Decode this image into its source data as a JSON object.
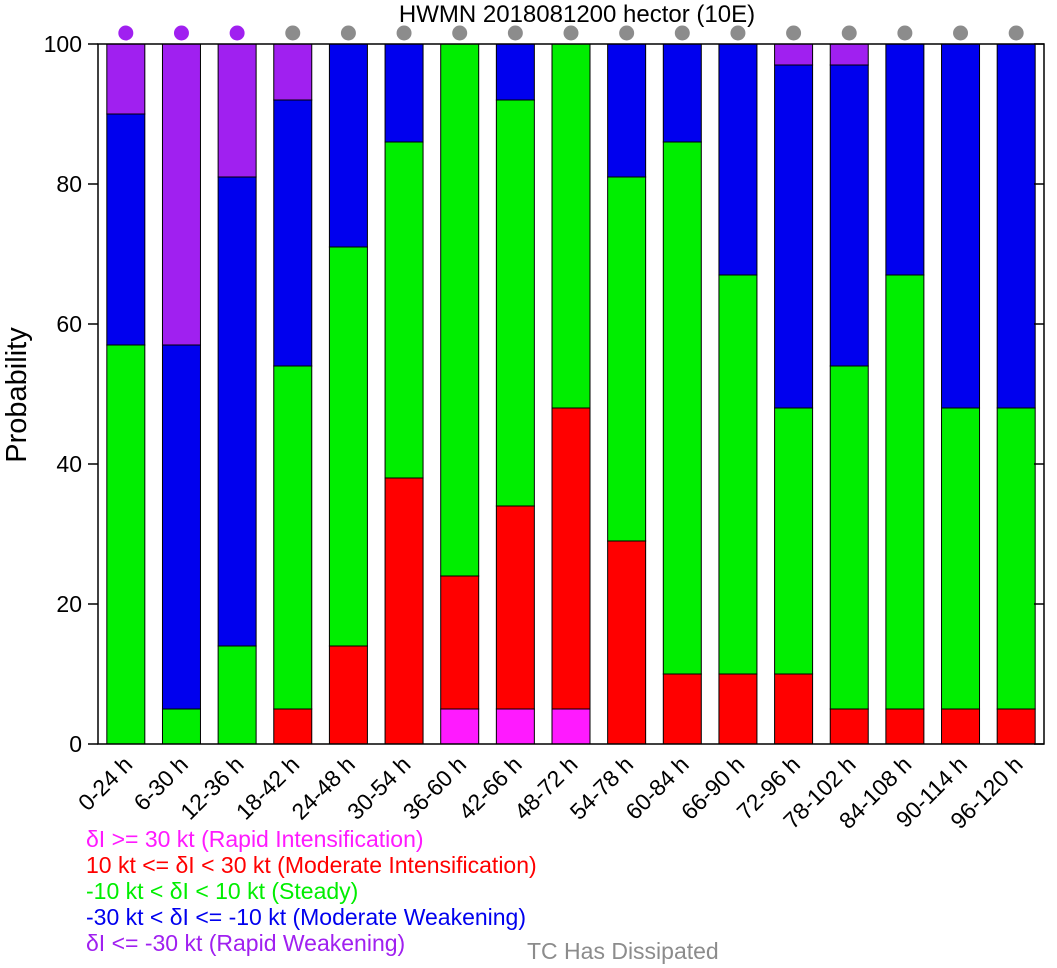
{
  "chart_data": {
    "type": "bar",
    "stacked": true,
    "title": "HWMN 2018081200 hector (10E)",
    "ylabel": "Probability",
    "ylim": [
      0,
      100
    ],
    "yticks": [
      0,
      20,
      40,
      60,
      80,
      100
    ],
    "categories": [
      "0-24 h",
      "6-30 h",
      "12-36 h",
      "18-42 h",
      "24-48 h",
      "30-54 h",
      "36-60 h",
      "42-66 h",
      "48-72 h",
      "54-78 h",
      "60-84 h",
      "66-90 h",
      "72-96 h",
      "78-102 h",
      "84-108 h",
      "90-114 h",
      "96-120 h"
    ],
    "series": [
      {
        "name": "δI >= 30 kt (Rapid Intensification)",
        "color": "#ff1aff",
        "values": [
          0,
          0,
          0,
          0,
          0,
          0,
          5,
          5,
          5,
          0,
          0,
          0,
          0,
          0,
          0,
          0,
          0
        ]
      },
      {
        "name": "10 kt <= δI < 30 kt (Moderate Intensification)",
        "color": "#ff0000",
        "values": [
          0,
          0,
          0,
          5,
          14,
          38,
          19,
          29,
          43,
          29,
          10,
          10,
          10,
          5,
          5,
          5,
          5
        ]
      },
      {
        "name": "-10 kt < δI < 10 kt (Steady)",
        "color": "#00ee00",
        "values": [
          57,
          5,
          14,
          49,
          57,
          48,
          76,
          58,
          52,
          52,
          76,
          57,
          38,
          49,
          62,
          43,
          43
        ]
      },
      {
        "name": "-30 kt < δI <= -10 kt (Moderate Weakening)",
        "color": "#0000ee",
        "values": [
          33,
          52,
          67,
          38,
          29,
          14,
          0,
          8,
          0,
          19,
          14,
          33,
          49,
          43,
          33,
          52,
          52
        ]
      },
      {
        "name": "δI <= -30 kt (Rapid Weakening)",
        "color": "#a020f0",
        "values": [
          10,
          43,
          19,
          8,
          0,
          0,
          0,
          0,
          0,
          0,
          0,
          0,
          3,
          3,
          0,
          0,
          0
        ]
      }
    ],
    "status_dots": [
      "#a020f0",
      "#a020f0",
      "#a020f0",
      "#8c8c8c",
      "#8c8c8c",
      "#8c8c8c",
      "#8c8c8c",
      "#8c8c8c",
      "#8c8c8c",
      "#8c8c8c",
      "#8c8c8c",
      "#8c8c8c",
      "#8c8c8c",
      "#8c8c8c",
      "#8c8c8c",
      "#8c8c8c",
      "#8c8c8c"
    ],
    "legend": [
      {
        "text": "δI >= 30 kt (Rapid Intensification)",
        "color": "#ff1aff"
      },
      {
        "text": "10 kt <= δI < 30 kt (Moderate Intensification)",
        "color": "#ff0000"
      },
      {
        "text": "-10 kt < δI < 10 kt (Steady)",
        "color": "#00ee00"
      },
      {
        "text": "-30 kt < δI <= -10 kt (Moderate Weakening)",
        "color": "#0000ee"
      },
      {
        "text": "δI <= -30 kt (Rapid Weakening)",
        "color": "#a020f0"
      }
    ],
    "dissipated_label": "TC Has Dissipated",
    "dissipated_color": "#8c8c8c"
  }
}
